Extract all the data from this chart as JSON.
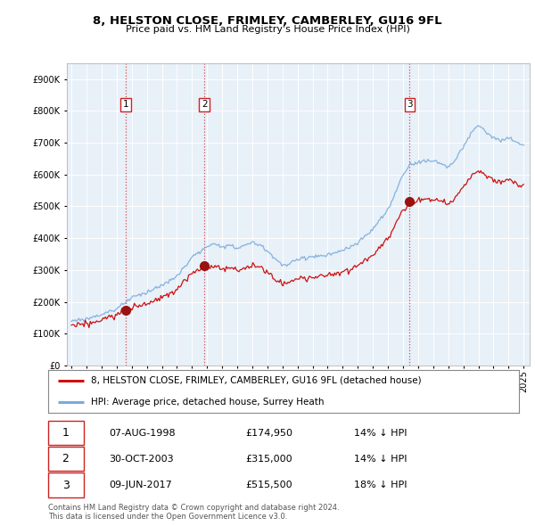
{
  "title": "8, HELSTON CLOSE, FRIMLEY, CAMBERLEY, GU16 9FL",
  "subtitle": "Price paid vs. HM Land Registry's House Price Index (HPI)",
  "legend_line1": "8, HELSTON CLOSE, FRIMLEY, CAMBERLEY, GU16 9FL (detached house)",
  "legend_line2": "HPI: Average price, detached house, Surrey Heath",
  "transactions": [
    {
      "num": 1,
      "date": "07-AUG-1998",
      "price": 174950,
      "year": 1998.6,
      "pct": "14%",
      "dir": "↓"
    },
    {
      "num": 2,
      "date": "30-OCT-2003",
      "price": 315000,
      "year": 2003.83,
      "pct": "14%",
      "dir": "↓"
    },
    {
      "num": 3,
      "date": "09-JUN-2017",
      "price": 515500,
      "year": 2017.44,
      "pct": "18%",
      "dir": "↓"
    }
  ],
  "footnote1": "Contains HM Land Registry data © Crown copyright and database right 2024.",
  "footnote2": "This data is licensed under the Open Government Licence v3.0.",
  "hpi_color": "#7aabdc",
  "price_color": "#cc1111",
  "marker_color": "#991111",
  "ylim": [
    0,
    950000
  ],
  "yticks": [
    0,
    100000,
    200000,
    300000,
    400000,
    500000,
    600000,
    700000,
    800000,
    900000
  ],
  "background_color": "#ffffff",
  "plot_bg_color": "#e8f0f8",
  "grid_color": "#ffffff"
}
